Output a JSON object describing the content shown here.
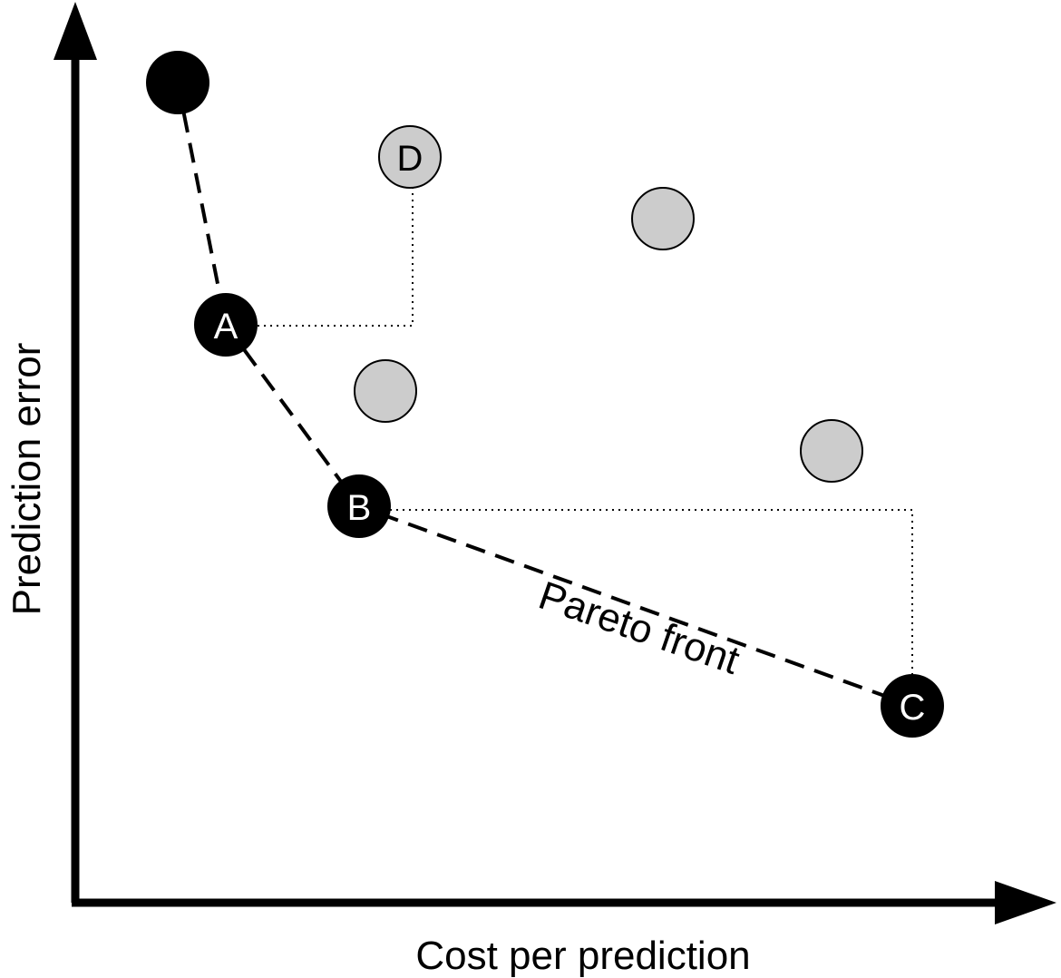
{
  "axes": {
    "x_label": "Cost per prediction",
    "y_label": "Prediction error"
  },
  "front_label": "Pareto front",
  "points": {
    "top_front": {
      "label": "",
      "on_front": true
    },
    "A": {
      "label": "A",
      "on_front": true
    },
    "B": {
      "label": "B",
      "on_front": true
    },
    "C": {
      "label": "C",
      "on_front": true
    },
    "D": {
      "label": "D",
      "on_front": false
    },
    "gray_1": {
      "label": "",
      "on_front": false
    },
    "gray_2": {
      "label": "",
      "on_front": false
    },
    "gray_3": {
      "label": "",
      "on_front": false
    }
  },
  "colors": {
    "front_point": "#000000",
    "dominated_point": "#cccccc",
    "axis": "#000000"
  }
}
